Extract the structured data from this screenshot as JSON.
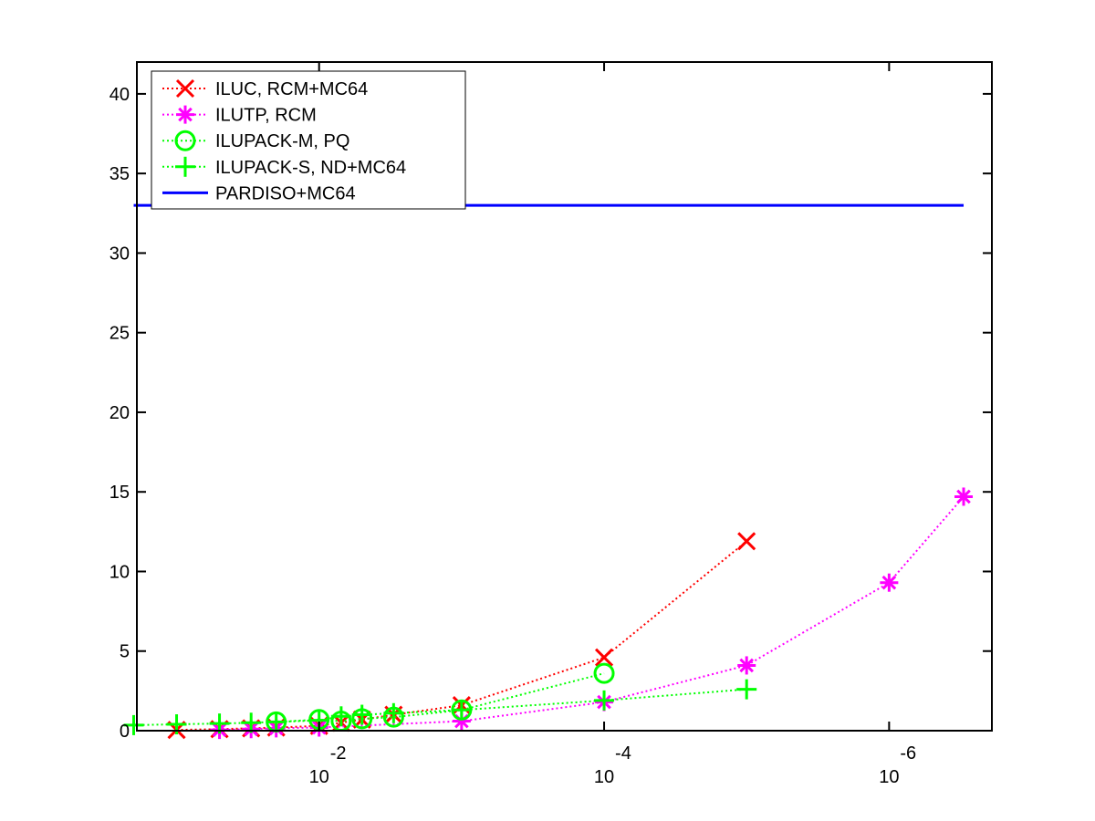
{
  "chart_data": {
    "type": "line",
    "title": "",
    "xlabel": "",
    "ylabel": "",
    "x_scale": "log",
    "x_direction": "decreasing",
    "xlim": [
      0.19,
      1.9e-07
    ],
    "ylim": [
      0,
      42
    ],
    "grid": false,
    "legend_position": "top-left",
    "x_ticks": [
      {
        "value": 0.01,
        "base": "10",
        "exponent": "-2"
      },
      {
        "value": 0.0001,
        "base": "10",
        "exponent": "-4"
      },
      {
        "value": 1e-06,
        "base": "10",
        "exponent": "-6"
      }
    ],
    "y_ticks": [
      0,
      5,
      10,
      15,
      20,
      25,
      30,
      35,
      40
    ],
    "series": [
      {
        "name": "ILUC, RCM+MC64",
        "color": "#ff0000",
        "marker": "x",
        "line": "dotted",
        "x": [
          0.1,
          0.05,
          0.03,
          0.02,
          0.01,
          0.007,
          0.005,
          0.003,
          0.001,
          0.0001,
          1e-05
        ],
        "y": [
          0.05,
          0.1,
          0.15,
          0.2,
          0.3,
          0.5,
          0.7,
          1.0,
          1.6,
          4.6,
          11.9
        ]
      },
      {
        "name": "ILUTP, RCM",
        "color": "#ff00ff",
        "marker": "star",
        "line": "dotted",
        "x": [
          0.05,
          0.03,
          0.02,
          0.01,
          0.001,
          0.0001,
          1e-05,
          1e-06,
          3e-07
        ],
        "y": [
          0.05,
          0.1,
          0.15,
          0.2,
          0.6,
          1.8,
          4.1,
          9.3,
          14.7
        ]
      },
      {
        "name": "ILUPACK-M, PQ",
        "color": "#00ff00",
        "marker": "circle",
        "line": "dotted",
        "x": [
          0.02,
          0.01,
          0.007,
          0.005,
          0.003,
          0.001,
          0.0001
        ],
        "y": [
          0.55,
          0.7,
          0.6,
          0.75,
          0.85,
          1.3,
          3.6
        ]
      },
      {
        "name": "ILUPACK-S, ND+MC64",
        "color": "#00ff00",
        "marker": "plus",
        "line": "dotted",
        "x": [
          0.2,
          0.1,
          0.05,
          0.03,
          0.02,
          0.01,
          0.007,
          0.005,
          0.003,
          0.001,
          0.0001,
          1e-05
        ],
        "y": [
          0.35,
          0.4,
          0.45,
          0.5,
          0.55,
          0.65,
          0.9,
          1.0,
          1.1,
          1.3,
          1.9,
          2.6
        ]
      },
      {
        "name": "PARDISO+MC64",
        "color": "#0000ff",
        "marker": "none",
        "line": "solid",
        "x": [
          0.2,
          3e-07
        ],
        "y": [
          33,
          33
        ]
      }
    ]
  }
}
